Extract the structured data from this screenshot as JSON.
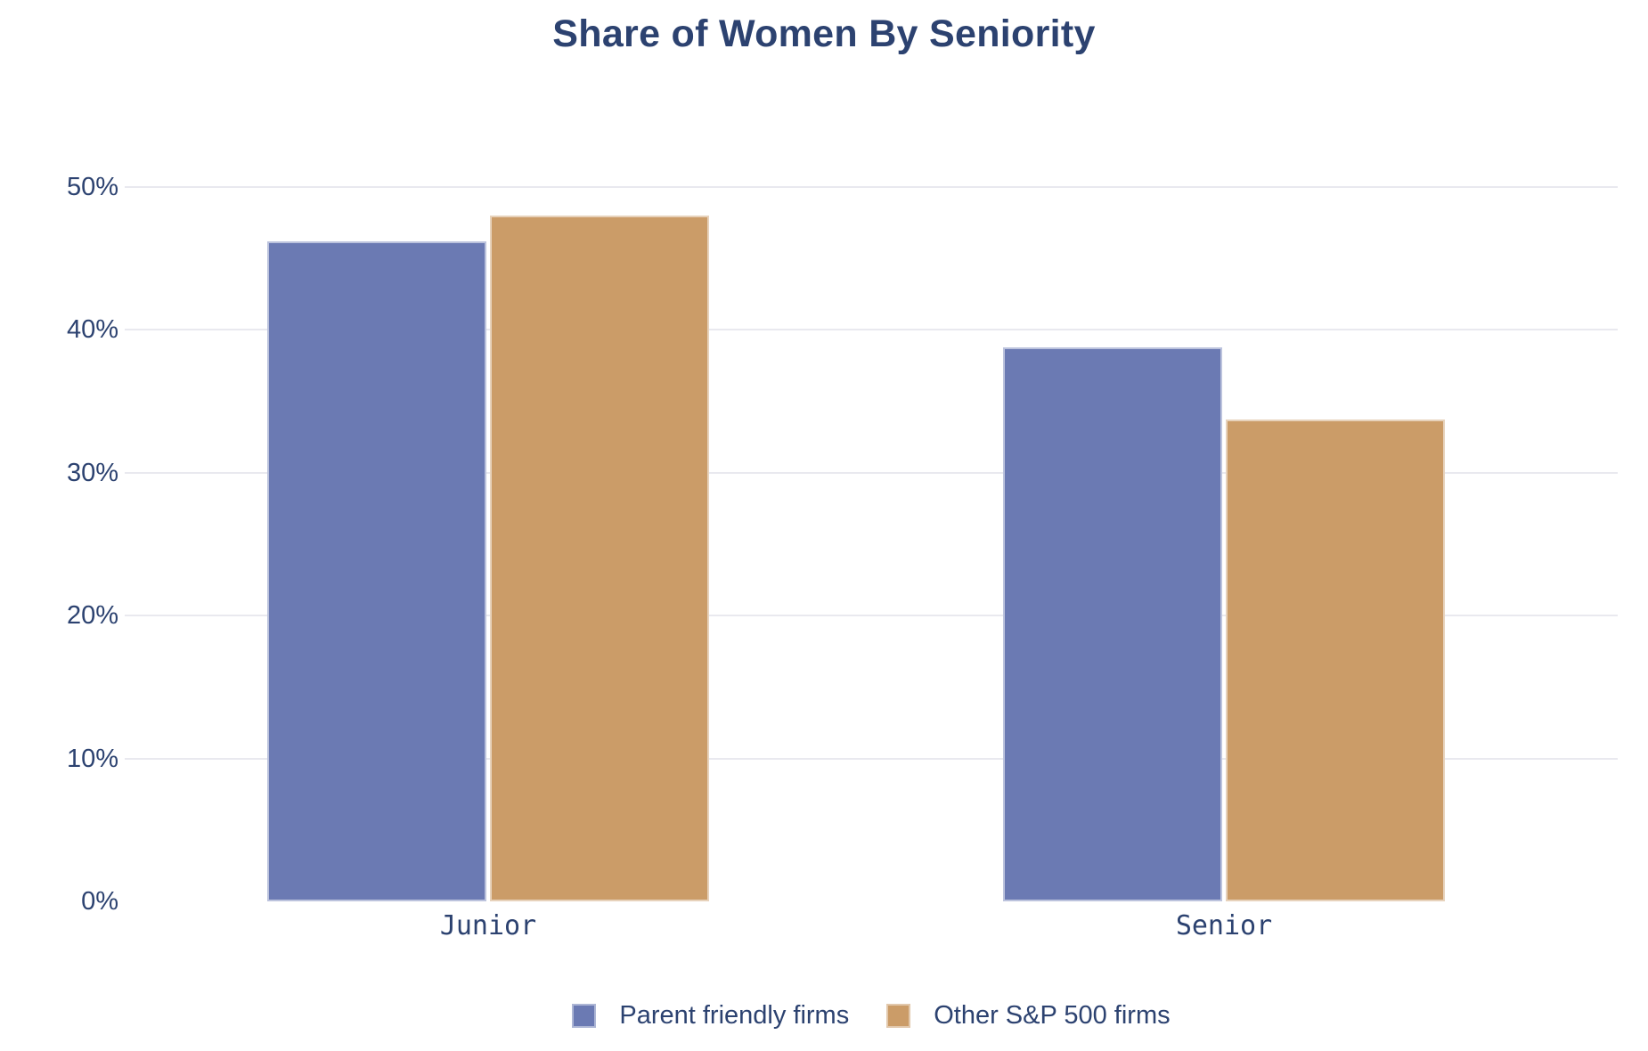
{
  "chart_data": {
    "type": "bar",
    "title": "Share of Women By Seniority",
    "categories": [
      "Junior",
      "Senior"
    ],
    "series": [
      {
        "name": "Parent friendly firms",
        "color": "#6b7ab3",
        "values": [
          46.2,
          38.8
        ]
      },
      {
        "name": "Other S&P 500 firms",
        "color": "#cb9c68",
        "values": [
          48.0,
          33.7
        ]
      }
    ],
    "xlabel": "",
    "ylabel": "",
    "y_ticks": [
      "0%",
      "10%",
      "20%",
      "30%",
      "40%",
      "50%"
    ],
    "y_tick_values": [
      0,
      10,
      20,
      30,
      40,
      50
    ],
    "ylim": [
      0,
      52
    ],
    "grid": "horizontal",
    "legend_position": "bottom-center",
    "colors": {
      "text": "#2c4270",
      "gridline": "#e9e9ef",
      "background": "#ffffff"
    }
  }
}
